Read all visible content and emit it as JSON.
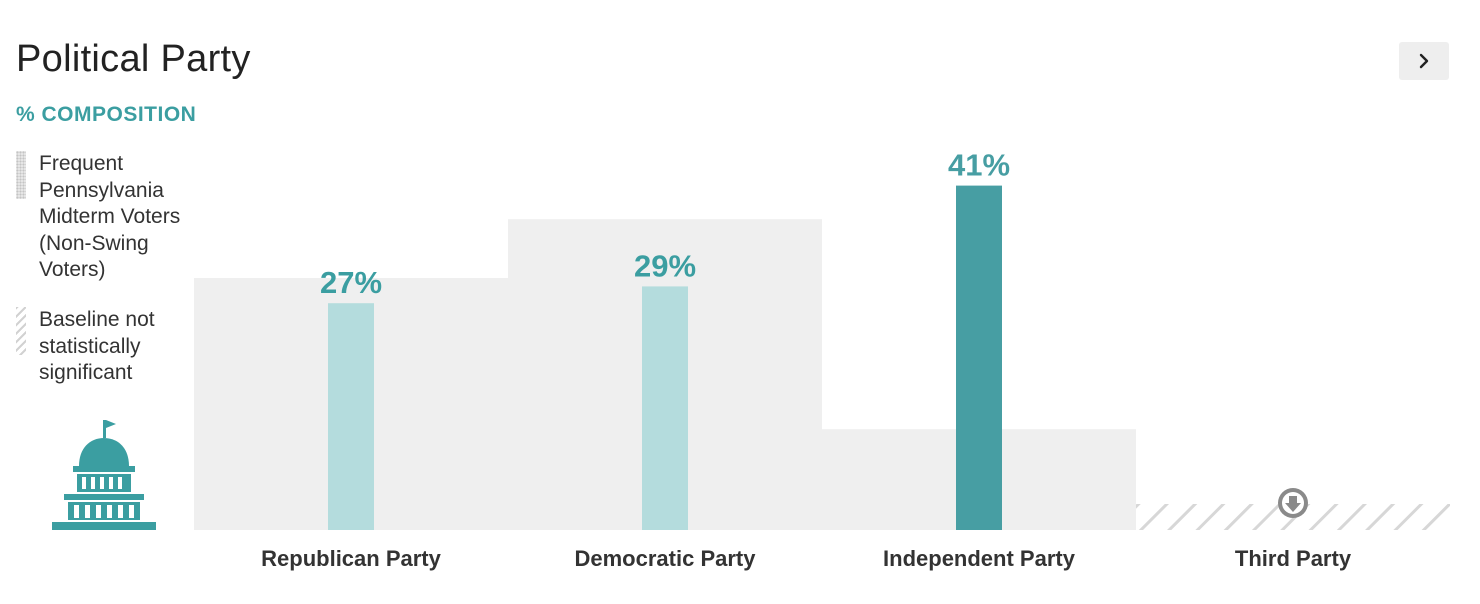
{
  "header": {
    "title": "Political Party",
    "subtitle": "% COMPOSITION"
  },
  "legend": {
    "items": [
      {
        "label": "Frequent Pennsylvania Midterm Voters (Non-Swing Voters)",
        "swatch": "dotted-gray"
      },
      {
        "label": "Baseline not statistically significant",
        "swatch": "hatched-gray"
      }
    ]
  },
  "icons": {
    "next": "chevron-right-icon",
    "capitol": "capitol-building-icon",
    "down": "arrow-down-circle-icon"
  },
  "colors": {
    "accent": "#3b9ea1",
    "bar_dark": "#479ea3",
    "bar_light": "#b4dcdd",
    "baseline": "#efefef",
    "hatch": "#d7d7d7"
  },
  "chart_data": {
    "type": "bar",
    "title": "Political Party",
    "subtitle": "% COMPOSITION",
    "categories": [
      "Republican Party",
      "Democratic Party",
      "Independent Party",
      "Third Party"
    ],
    "series": [
      {
        "name": "Frequent Pennsylvania Midterm Voters (Non-Swing Voters)",
        "values": [
          30,
          37,
          12,
          null
        ],
        "not_significant": [
          false,
          false,
          false,
          true
        ]
      },
      {
        "name": "",
        "values": [
          27,
          29,
          41,
          null
        ],
        "labels": [
          "27%",
          "29%",
          "41%",
          ""
        ],
        "highlight": [
          false,
          false,
          true,
          false
        ]
      }
    ],
    "ylim": [
      0,
      45
    ],
    "grid": false,
    "legend_position": "left"
  }
}
